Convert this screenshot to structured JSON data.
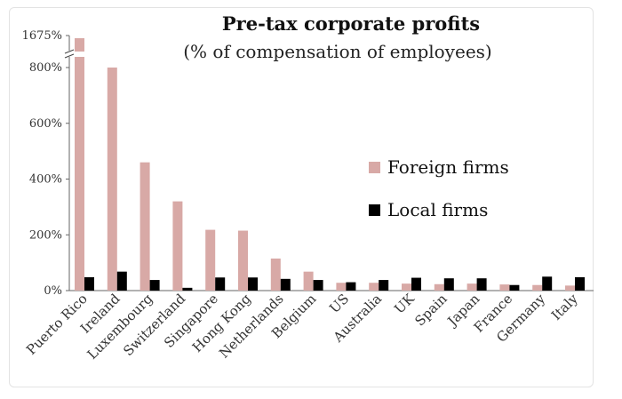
{
  "chart_data": {
    "type": "bar",
    "title": "Pre-tax corporate profits",
    "subtitle": "(% of compensation of employees)",
    "xlabel": "",
    "ylabel": "",
    "ylim": [
      0,
      900
    ],
    "axis_break": {
      "label": "1675%",
      "value": 1675
    },
    "yticks": [
      "0%",
      "200%",
      "400%",
      "600%",
      "800%"
    ],
    "ytick_values": [
      0,
      200,
      400,
      600,
      800
    ],
    "categories": [
      "Puerto Rico",
      "Ireland",
      "Luxembourg",
      "Switzerland",
      "Singapore",
      "Hong Kong",
      "Netherlands",
      "Belgium",
      "US",
      "Australia",
      "UK",
      "Spain",
      "Japan",
      "France",
      "Germany",
      "Italy"
    ],
    "series": [
      {
        "name": "Foreign firms",
        "color": "#d8a9a6",
        "values": [
          1675,
          800,
          460,
          320,
          218,
          215,
          115,
          68,
          28,
          28,
          25,
          23,
          25,
          22,
          20,
          18
        ]
      },
      {
        "name": "Local firms",
        "color": "#000000",
        "values": [
          48,
          68,
          38,
          10,
          47,
          47,
          42,
          38,
          30,
          38,
          46,
          44,
          44,
          20,
          50,
          48
        ]
      }
    ],
    "legend_position": "right",
    "grid": false
  }
}
